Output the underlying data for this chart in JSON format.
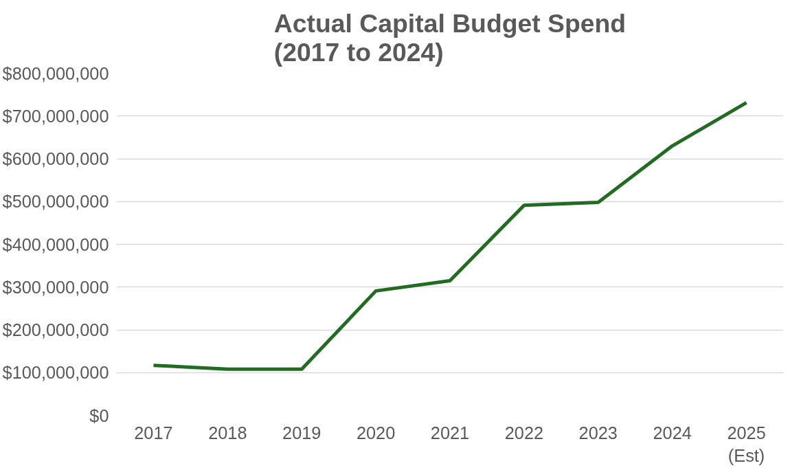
{
  "chart_data": {
    "type": "line",
    "title": "Actual Capital Budget Spend\n(2017 to 2024)",
    "categories": [
      "2017",
      "2018",
      "2019",
      "2020",
      "2021",
      "2022",
      "2023",
      "2024",
      "2025\n(Est)"
    ],
    "series": [
      {
        "color": "#226b22",
        "values": [
          117000000,
          108000000,
          108000000,
          291000000,
          315000000,
          491000000,
          498000000,
          630000000,
          731000000
        ]
      }
    ],
    "ylim": [
      0,
      800000000
    ],
    "yticks": [
      {
        "value": 0,
        "label": "$0"
      },
      {
        "value": 100000000,
        "label": "$100,000,000"
      },
      {
        "value": 200000000,
        "label": "$200,000,000"
      },
      {
        "value": 300000000,
        "label": "$300,000,000"
      },
      {
        "value": 400000000,
        "label": "$400,000,000"
      },
      {
        "value": 500000000,
        "label": "$500,000,000"
      },
      {
        "value": 600000000,
        "label": "$600,000,000"
      },
      {
        "value": 700000000,
        "label": "$700,000,000"
      },
      {
        "value": 800000000,
        "label": "$800,000,000"
      }
    ],
    "grid": "y",
    "marker": "none",
    "line_style": "solid"
  }
}
